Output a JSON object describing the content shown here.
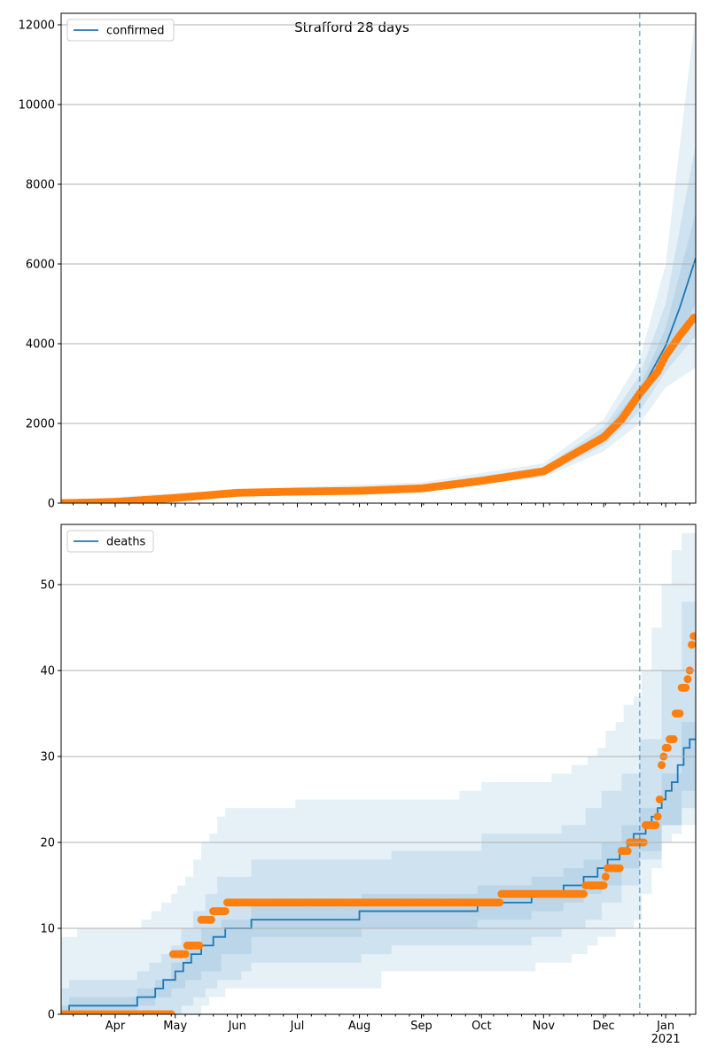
{
  "title": "Strafford 28 days",
  "colors": {
    "model": "#1f77b4",
    "observed": "#ff7f0e",
    "band": "#1f77b4",
    "grid": "#b0b0b0"
  },
  "chart_data": [
    {
      "type": "line",
      "legend": "confirmed",
      "legend_placement": "top-left",
      "x_unit": "days since 2020-03-05",
      "xlim": [
        0,
        317
      ],
      "ylim": [
        0,
        12289
      ],
      "yticks": [
        0,
        2000,
        4000,
        6000,
        8000,
        10000,
        12000
      ],
      "ytick_labels": [
        "0",
        "2000",
        "4000",
        "6000",
        "8000",
        "10000",
        "12000"
      ],
      "forecast_start_day": 289,
      "observed": [
        [
          0,
          0
        ],
        [
          27,
          30
        ],
        [
          57,
          130
        ],
        [
          88,
          260
        ],
        [
          118,
          290
        ],
        [
          149,
          310
        ],
        [
          180,
          370
        ],
        [
          210,
          560
        ],
        [
          241,
          800
        ],
        [
          255,
          1200
        ],
        [
          271,
          1650
        ],
        [
          280,
          2100
        ],
        [
          289,
          2750
        ],
        [
          298,
          3300
        ],
        [
          302,
          3700
        ],
        [
          309,
          4200
        ],
        [
          316,
          4650
        ]
      ],
      "median": [
        [
          0,
          0
        ],
        [
          27,
          30
        ],
        [
          57,
          130
        ],
        [
          88,
          260
        ],
        [
          118,
          290
        ],
        [
          149,
          310
        ],
        [
          180,
          370
        ],
        [
          210,
          560
        ],
        [
          241,
          800
        ],
        [
          255,
          1200
        ],
        [
          271,
          1650
        ],
        [
          280,
          2100
        ],
        [
          289,
          2750
        ],
        [
          302,
          3950
        ],
        [
          309,
          4900
        ],
        [
          317,
          6150
        ]
      ],
      "bands": [
        [
          [
            0,
            0,
            60
          ],
          [
            57,
            80,
            260
          ],
          [
            118,
            230,
            400
          ],
          [
            180,
            300,
            520
          ],
          [
            241,
            650,
            1000
          ],
          [
            271,
            1300,
            2100
          ],
          [
            289,
            2000,
            3600
          ],
          [
            302,
            2900,
            6000
          ],
          [
            317,
            3400,
            12300
          ]
        ],
        [
          [
            0,
            0,
            40
          ],
          [
            57,
            100,
            200
          ],
          [
            118,
            250,
            350
          ],
          [
            180,
            330,
            460
          ],
          [
            241,
            700,
            900
          ],
          [
            271,
            1450,
            1900
          ],
          [
            289,
            2300,
            3200
          ],
          [
            302,
            3300,
            5000
          ],
          [
            317,
            4200,
            9000
          ]
        ],
        [
          [
            0,
            0,
            20
          ],
          [
            57,
            110,
            170
          ],
          [
            118,
            270,
            320
          ],
          [
            180,
            350,
            420
          ],
          [
            241,
            740,
            850
          ],
          [
            271,
            1550,
            1800
          ],
          [
            289,
            2500,
            2900
          ],
          [
            302,
            3600,
            4400
          ],
          [
            317,
            5000,
            7300
          ]
        ]
      ]
    },
    {
      "type": "line",
      "legend": "deaths",
      "legend_placement": "top-left",
      "x_unit": "days since 2020-03-05",
      "xlim": [
        0,
        317
      ],
      "ylim": [
        0,
        57
      ],
      "yticks": [
        0,
        10,
        20,
        30,
        40,
        50
      ],
      "ytick_labels": [
        "0",
        "10",
        "20",
        "30",
        "40",
        "50"
      ],
      "forecast_start_day": 289,
      "observed_steps": [
        [
          0,
          0
        ],
        [
          56,
          7
        ],
        [
          63,
          8
        ],
        [
          70,
          11
        ],
        [
          76,
          12
        ],
        [
          83,
          13
        ],
        [
          220,
          14
        ],
        [
          262,
          15
        ],
        [
          272,
          16
        ],
        [
          273,
          17
        ],
        [
          280,
          19
        ],
        [
          284,
          20
        ],
        [
          292,
          22
        ],
        [
          298,
          23
        ],
        [
          299,
          25
        ],
        [
          300,
          29
        ],
        [
          301,
          30
        ],
        [
          302,
          31
        ],
        [
          304,
          32
        ],
        [
          307,
          35
        ],
        [
          310,
          38
        ],
        [
          313,
          39
        ],
        [
          314,
          40
        ],
        [
          315,
          43
        ],
        [
          316,
          44
        ]
      ],
      "median_steps": [
        [
          0,
          0
        ],
        [
          4,
          1
        ],
        [
          38,
          2
        ],
        [
          47,
          3
        ],
        [
          51,
          4
        ],
        [
          57,
          5
        ],
        [
          61,
          6
        ],
        [
          65,
          7
        ],
        [
          70,
          8
        ],
        [
          76,
          9
        ],
        [
          82,
          10
        ],
        [
          95,
          11
        ],
        [
          149,
          12
        ],
        [
          208,
          13
        ],
        [
          235,
          14
        ],
        [
          251,
          15
        ],
        [
          261,
          16
        ],
        [
          268,
          17
        ],
        [
          273,
          18
        ],
        [
          279,
          19
        ],
        [
          283,
          20
        ],
        [
          286,
          21
        ],
        [
          292,
          22
        ],
        [
          295,
          23
        ],
        [
          298,
          24
        ],
        [
          300,
          25
        ],
        [
          302,
          26
        ],
        [
          305,
          27
        ],
        [
          308,
          29
        ],
        [
          311,
          31
        ],
        [
          314,
          32
        ]
      ],
      "bands": [
        [
          [
            0,
            0,
            9
          ],
          [
            8,
            0,
            10
          ],
          [
            40,
            0,
            11
          ],
          [
            45,
            0,
            12
          ],
          [
            50,
            0,
            13
          ],
          [
            55,
            0,
            14
          ],
          [
            58,
            0,
            15
          ],
          [
            62,
            0,
            16
          ],
          [
            66,
            0,
            18
          ],
          [
            70,
            1,
            20
          ],
          [
            74,
            2,
            21
          ],
          [
            78,
            2,
            23
          ],
          [
            82,
            3,
            24
          ],
          [
            117,
            3,
            25
          ],
          [
            160,
            5,
            25
          ],
          [
            199,
            5,
            26
          ],
          [
            210,
            5,
            27
          ],
          [
            237,
            6,
            27
          ],
          [
            245,
            6,
            28
          ],
          [
            255,
            7,
            29
          ],
          [
            263,
            8,
            30
          ],
          [
            268,
            9,
            31
          ],
          [
            272,
            9,
            33
          ],
          [
            277,
            10,
            34
          ],
          [
            281,
            10,
            36
          ],
          [
            286,
            11,
            37
          ],
          [
            290,
            14,
            40
          ],
          [
            295,
            17,
            45
          ],
          [
            300,
            20,
            50
          ],
          [
            305,
            21,
            54
          ],
          [
            310,
            22,
            56
          ]
        ],
        [
          [
            0,
            0,
            3
          ],
          [
            4,
            0,
            4
          ],
          [
            38,
            0,
            5
          ],
          [
            44,
            0,
            6
          ],
          [
            50,
            0,
            7
          ],
          [
            55,
            0,
            8
          ],
          [
            60,
            1,
            10
          ],
          [
            66,
            2,
            12
          ],
          [
            72,
            3,
            14
          ],
          [
            78,
            4,
            16
          ],
          [
            90,
            5,
            16
          ],
          [
            95,
            6,
            18
          ],
          [
            150,
            7,
            18
          ],
          [
            165,
            8,
            19
          ],
          [
            210,
            8,
            21
          ],
          [
            235,
            9,
            21
          ],
          [
            250,
            10,
            22
          ],
          [
            262,
            11,
            24
          ],
          [
            270,
            13,
            26
          ],
          [
            280,
            15,
            28
          ],
          [
            289,
            18,
            32
          ],
          [
            300,
            22,
            40
          ],
          [
            310,
            24,
            48
          ]
        ],
        [
          [
            0,
            0,
            1
          ],
          [
            4,
            0,
            2
          ],
          [
            38,
            1,
            3
          ],
          [
            47,
            2,
            4
          ],
          [
            55,
            3,
            6
          ],
          [
            62,
            4,
            8
          ],
          [
            70,
            5,
            10
          ],
          [
            80,
            7,
            11
          ],
          [
            95,
            9,
            13
          ],
          [
            150,
            10,
            14
          ],
          [
            208,
            11,
            15
          ],
          [
            235,
            12,
            16
          ],
          [
            251,
            13,
            17
          ],
          [
            261,
            14,
            18
          ],
          [
            270,
            15,
            20
          ],
          [
            280,
            17,
            22
          ],
          [
            289,
            19,
            24
          ],
          [
            300,
            22,
            28
          ],
          [
            310,
            26,
            34
          ]
        ]
      ]
    }
  ],
  "x_axis": {
    "month_ticks": [
      27,
      57,
      88,
      118,
      149,
      180,
      210,
      241,
      271,
      302
    ],
    "month_labels": [
      "Apr",
      "May",
      "Jun",
      "Jul",
      "Aug",
      "Sep",
      "Oct",
      "Nov",
      "Dec",
      "Jan"
    ],
    "year_label": "2021"
  }
}
